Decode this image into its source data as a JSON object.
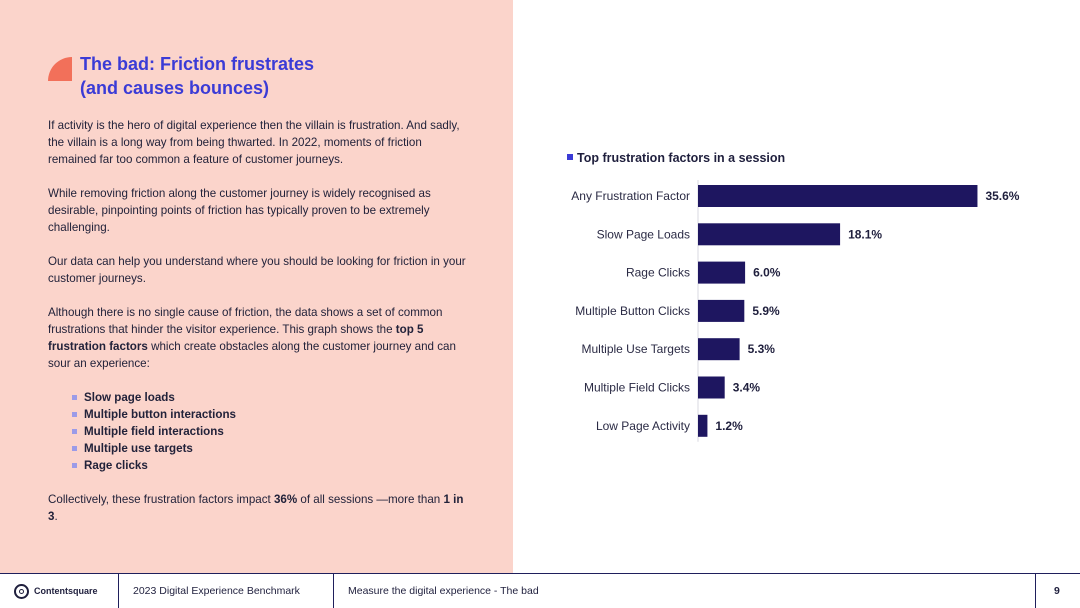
{
  "left": {
    "title_line1": "The bad: Friction frustrates",
    "title_line2": "(and causes bounces)",
    "p1": "If activity is the hero of digital experience then the villain is frustration. And sadly, the villain is a long way from being thwarted. In 2022, moments of friction remained far too common a feature of customer journeys.",
    "p2": "While removing friction along the customer journey is widely recognised as desirable, pinpointing points of friction has typically proven to be extremely challenging.",
    "p3": "Our data can help you understand where you should be looking for friction in your customer journeys.",
    "p4_a": "Although there is no single cause of friction, the data shows a set of common frustrations that hinder the visitor experience. This graph shows the ",
    "p4_b": "top 5 frustration factors",
    "p4_c": " which create obstacles along the customer journey and can sour an experience:",
    "bullets": [
      "Slow page loads",
      "Multiple button interactions",
      "Multiple field interactions",
      "Multiple use targets",
      "Rage clicks"
    ],
    "p5_a": "Collectively, these frustration factors impact ",
    "p5_b": "36%",
    "p5_c": " of all sessions —more than ",
    "p5_d": "1 in 3",
    "p5_e": "."
  },
  "chart_data": {
    "type": "bar",
    "orientation": "horizontal",
    "title": "Top frustration factors in a session",
    "categories": [
      "Any Frustration Factor",
      "Slow Page Loads",
      "Rage Clicks",
      "Multiple Button Clicks",
      "Multiple Use Targets",
      "Multiple Field Clicks",
      "Low Page Activity"
    ],
    "values": [
      35.6,
      18.1,
      6.0,
      5.9,
      5.3,
      3.4,
      1.2
    ],
    "labels": [
      "35.6%",
      "18.1%",
      "6.0%",
      "5.9%",
      "5.3%",
      "3.4%",
      "1.2%"
    ],
    "xlim": [
      0,
      40
    ],
    "bar_color": "#1e1660"
  },
  "footer": {
    "logo": "Contentsquare",
    "report": "2023 Digital Experience Benchmark",
    "section": "Measure the digital experience - The bad",
    "page": "9"
  }
}
